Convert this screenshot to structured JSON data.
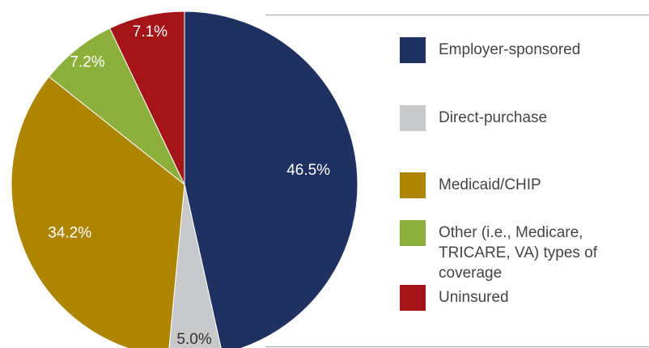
{
  "chart_data": {
    "type": "pie",
    "categories": [
      "Employer-sponsored",
      "Direct-purchase",
      "Medicaid/CHIP",
      "Other (i.e., Medicare, TRICARE, VA) types of coverage",
      "Uninsured"
    ],
    "values": [
      46.5,
      5.0,
      34.2,
      7.2,
      7.1
    ],
    "value_labels": [
      "46.5%",
      "5.0%",
      "34.2%",
      "7.2%",
      "7.1%"
    ],
    "colors": [
      "#1f3160",
      "#c8c9cb",
      "#ad8500",
      "#8db03c",
      "#a51419"
    ],
    "legend": "right"
  }
}
